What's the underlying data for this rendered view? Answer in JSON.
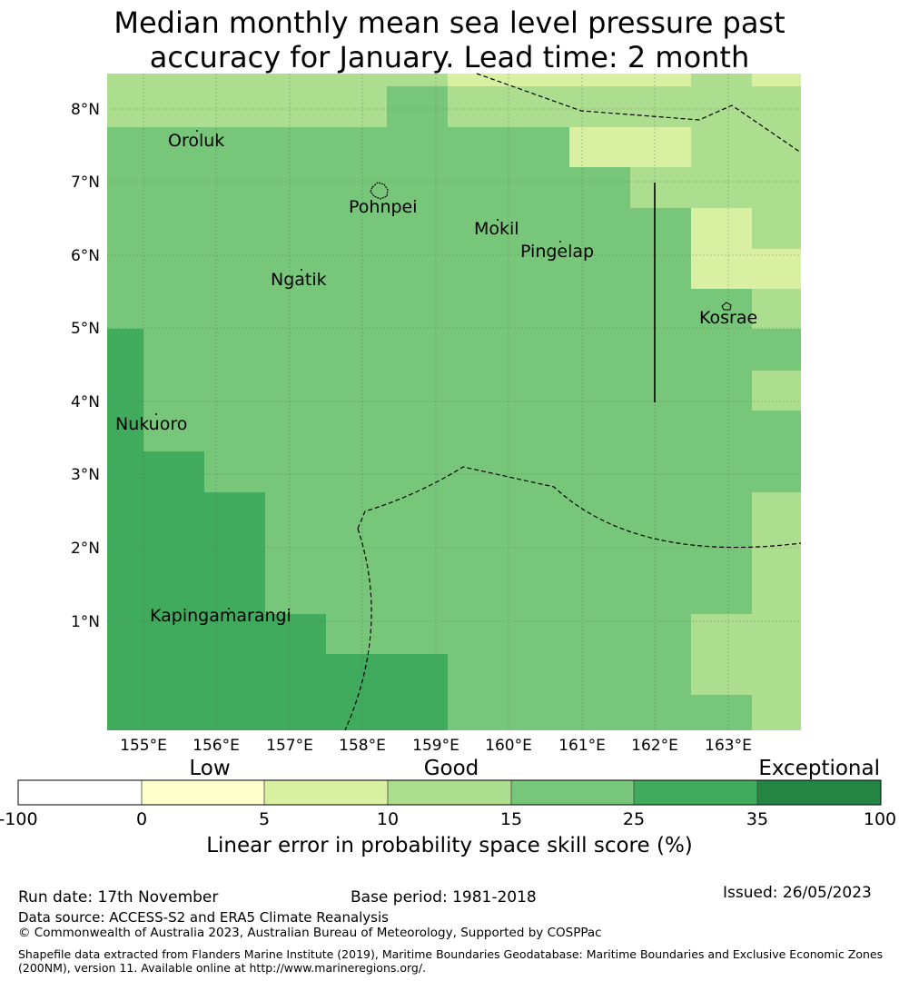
{
  "title": {
    "line1": "Median monthly mean sea level pressure past",
    "line2": "accuracy for January. Lead time: 2 month"
  },
  "map": {
    "lon_range": [
      154.5,
      164.0
    ],
    "lat_range": [
      -0.3,
      8.5
    ],
    "lon_ticks": [
      "155°E",
      "156°E",
      "157°E",
      "158°E",
      "159°E",
      "160°E",
      "161°E",
      "162°E",
      "163°E"
    ],
    "lat_ticks": [
      "1°N",
      "2°N",
      "3°N",
      "4°N",
      "5°N",
      "6°N",
      "7°N",
      "8°N"
    ],
    "places": [
      "Oroluk",
      "Pohnpei",
      "Mokil",
      "Pingelap",
      "Ngatik",
      "Kosrae",
      "Nukuoro",
      "Kapingamarangi"
    ],
    "boundary_style": "dashed",
    "divider_line": {
      "lon": 162.0,
      "lat_from": 4.0,
      "lat_to": 7.0
    }
  },
  "colorbar": {
    "categories": [
      "Low",
      "Good",
      "Exceptional"
    ],
    "ticks": [
      "-100",
      "0",
      "5",
      "10",
      "15",
      "25",
      "35",
      "100"
    ],
    "colors": [
      "#ffffff",
      "#ffffcc",
      "#d9f0a3",
      "#addd8e",
      "#78c679",
      "#41ab5d",
      "#238443"
    ],
    "label": "Linear error in probability space skill score (%)"
  },
  "footer": {
    "run_date": "Run date: 17th November",
    "base_period": "Base period: 1981-2018",
    "issued": "Issued: 26/05/2023",
    "data_source": "Data source: ACCESS-S2 and ERA5 Climate Reanalysis",
    "copyright": "© Commonwealth of Australia 2023, Australian Bureau of Meteorology, Supported by COSPPac",
    "shapefile_line1": "Shapefile data extracted from Flanders Marine Institute (2019), Maritime Boundaries Geodatabase: Maritime Boundaries and Exclusive Economic Zones",
    "shapefile_line2": "(200NM), version 11. Available online at http://www.marineregions.org/."
  }
}
